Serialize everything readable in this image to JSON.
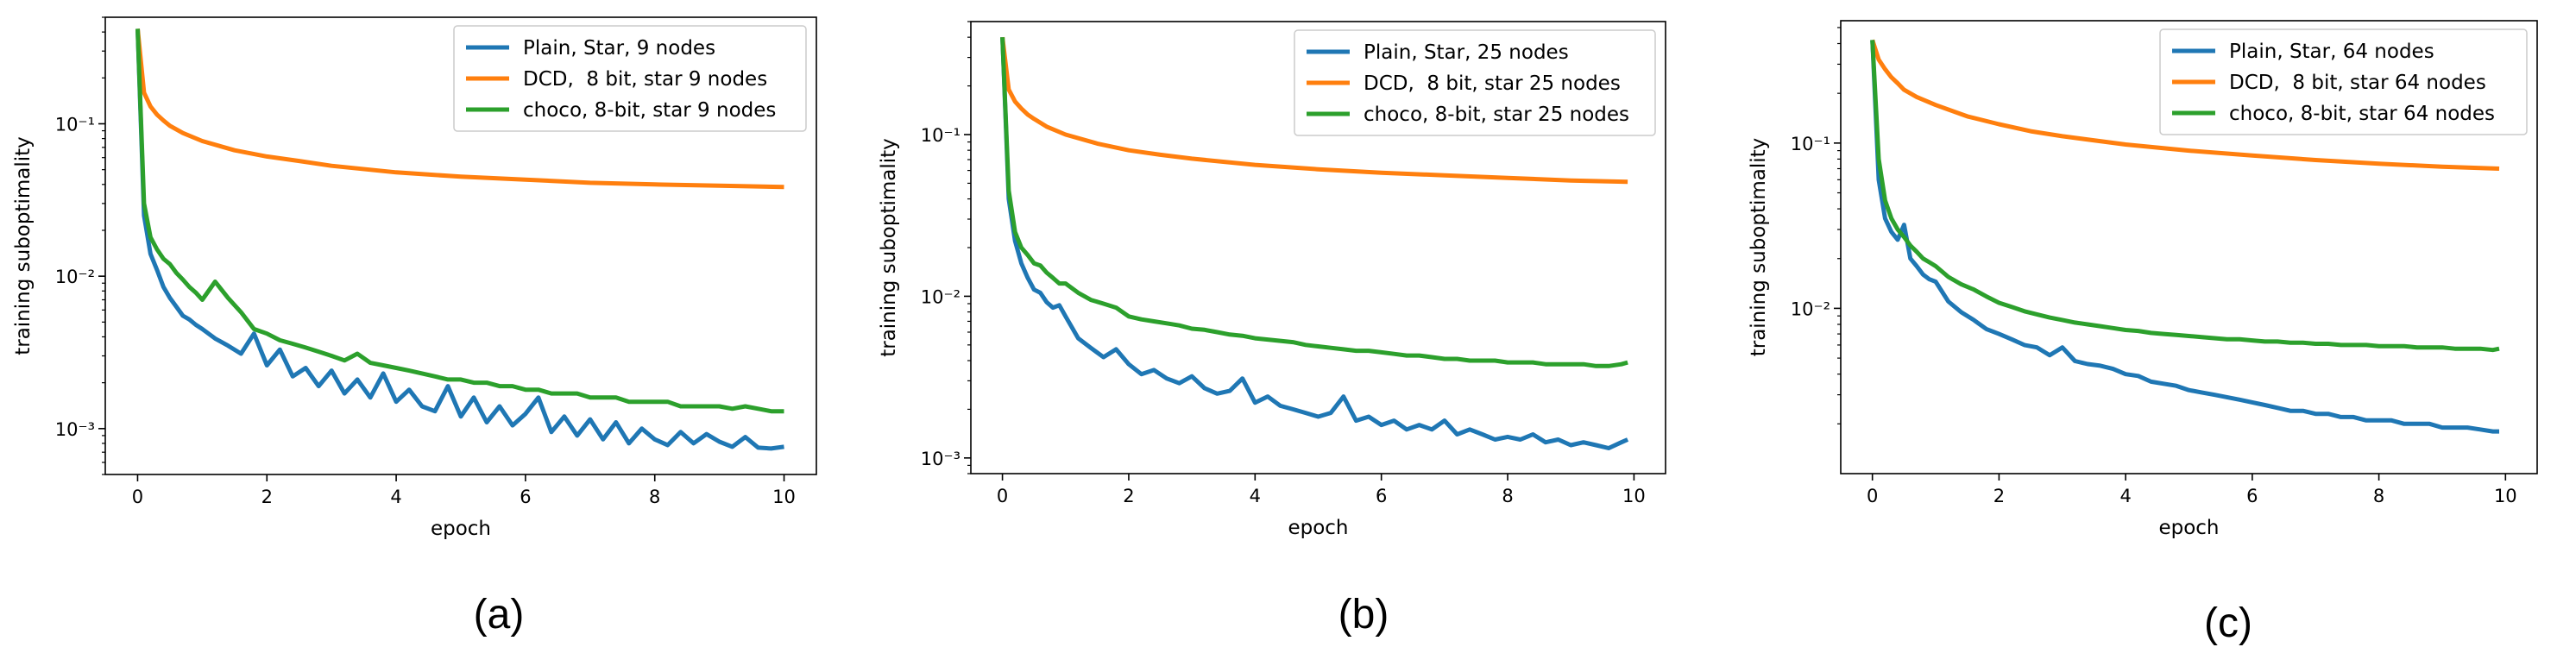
{
  "chart_data": [
    {
      "type": "line",
      "caption": "(a)",
      "xlabel": "epoch",
      "ylabel": "training suboptimality",
      "yscale": "log",
      "xlim": [
        -0.5,
        10.5
      ],
      "ylim": [
        0.0005,
        0.5
      ],
      "xticks": [
        0,
        2,
        4,
        6,
        8,
        10
      ],
      "yticks": [
        0.001,
        0.01,
        0.1
      ],
      "ytick_labels": [
        "10⁻³",
        "10⁻²",
        "10⁻¹"
      ],
      "legend_position": "top-right",
      "series": [
        {
          "name": "Plain, Star, 9 nodes",
          "color": "#1f77b4",
          "x": [
            0,
            0.1,
            0.2,
            0.3,
            0.4,
            0.5,
            0.6,
            0.7,
            0.8,
            0.9,
            1.0,
            1.2,
            1.4,
            1.6,
            1.8,
            2.0,
            2.2,
            2.4,
            2.6,
            2.8,
            3.0,
            3.2,
            3.4,
            3.6,
            3.8,
            4.0,
            4.2,
            4.4,
            4.6,
            4.8,
            5.0,
            5.2,
            5.4,
            5.6,
            5.8,
            6.0,
            6.2,
            6.4,
            6.6,
            6.8,
            7.0,
            7.2,
            7.4,
            7.6,
            7.8,
            8.0,
            8.2,
            8.4,
            8.6,
            8.8,
            9.0,
            9.2,
            9.4,
            9.6,
            9.8,
            10.0
          ],
          "y": [
            0.42,
            0.025,
            0.014,
            0.011,
            0.0085,
            0.0072,
            0.0063,
            0.0055,
            0.0052,
            0.0048,
            0.0045,
            0.0039,
            0.0035,
            0.0031,
            0.0042,
            0.0026,
            0.0033,
            0.0022,
            0.0025,
            0.0019,
            0.0024,
            0.0017,
            0.0021,
            0.0016,
            0.0023,
            0.0015,
            0.0018,
            0.0014,
            0.0013,
            0.0019,
            0.0012,
            0.0016,
            0.0011,
            0.0014,
            0.00105,
            0.00125,
            0.0016,
            0.00095,
            0.0012,
            0.0009,
            0.00115,
            0.00085,
            0.0011,
            0.0008,
            0.001,
            0.00085,
            0.00078,
            0.00095,
            0.0008,
            0.00092,
            0.00082,
            0.00076,
            0.00088,
            0.00075,
            0.00074,
            0.00076
          ]
        },
        {
          "name": "DCD,  8 bit, star 9 nodes",
          "color": "#ff7f0e",
          "x": [
            0,
            0.1,
            0.2,
            0.3,
            0.4,
            0.5,
            0.7,
            1.0,
            1.5,
            2.0,
            2.5,
            3.0,
            4.0,
            5.0,
            6.0,
            7.0,
            8.0,
            9.0,
            10.0
          ],
          "y": [
            0.42,
            0.16,
            0.13,
            0.115,
            0.105,
            0.097,
            0.087,
            0.077,
            0.067,
            0.061,
            0.057,
            0.053,
            0.048,
            0.045,
            0.043,
            0.041,
            0.04,
            0.0392,
            0.0385
          ]
        },
        {
          "name": "choco, 8-bit, star 9 nodes",
          "color": "#2ca02c",
          "x": [
            0,
            0.1,
            0.2,
            0.3,
            0.4,
            0.5,
            0.6,
            0.7,
            0.8,
            0.9,
            1.0,
            1.2,
            1.4,
            1.6,
            1.8,
            2.0,
            2.2,
            2.4,
            2.6,
            2.8,
            3.0,
            3.2,
            3.4,
            3.6,
            3.8,
            4.0,
            4.2,
            4.4,
            4.6,
            4.8,
            5.0,
            5.2,
            5.4,
            5.6,
            5.8,
            6.0,
            6.2,
            6.4,
            6.6,
            6.8,
            7.0,
            7.2,
            7.4,
            7.6,
            7.8,
            8.0,
            8.2,
            8.4,
            8.6,
            8.8,
            9.0,
            9.2,
            9.4,
            9.6,
            9.8,
            10.0
          ],
          "y": [
            0.42,
            0.03,
            0.018,
            0.015,
            0.013,
            0.012,
            0.0105,
            0.0095,
            0.0085,
            0.0078,
            0.007,
            0.0092,
            0.0072,
            0.0058,
            0.0045,
            0.0042,
            0.0038,
            0.0036,
            0.0034,
            0.0032,
            0.003,
            0.0028,
            0.0031,
            0.0027,
            0.0026,
            0.0025,
            0.0024,
            0.0023,
            0.0022,
            0.0021,
            0.0021,
            0.002,
            0.002,
            0.0019,
            0.0019,
            0.0018,
            0.0018,
            0.0017,
            0.0017,
            0.0017,
            0.0016,
            0.0016,
            0.0016,
            0.0015,
            0.0015,
            0.0015,
            0.0015,
            0.0014,
            0.0014,
            0.0014,
            0.0014,
            0.00135,
            0.0014,
            0.00135,
            0.0013,
            0.0013
          ]
        }
      ]
    },
    {
      "type": "line",
      "caption": "(b)",
      "xlabel": "epoch",
      "ylabel": "training suboptimality",
      "yscale": "log",
      "xlim": [
        -0.5,
        10.5
      ],
      "ylim": [
        0.0008,
        0.5
      ],
      "xticks": [
        0,
        2,
        4,
        6,
        8,
        10
      ],
      "yticks": [
        0.001,
        0.01,
        0.1
      ],
      "ytick_labels": [
        "10⁻³",
        "10⁻²",
        "10⁻¹"
      ],
      "legend_position": "top-right",
      "series": [
        {
          "name": "Plain, Star, 25 nodes",
          "color": "#1f77b4",
          "x": [
            0,
            0.1,
            0.2,
            0.3,
            0.4,
            0.5,
            0.6,
            0.7,
            0.8,
            0.9,
            1.0,
            1.2,
            1.4,
            1.6,
            1.8,
            2.0,
            2.2,
            2.4,
            2.6,
            2.8,
            3.0,
            3.2,
            3.4,
            3.6,
            3.8,
            4.0,
            4.2,
            4.4,
            4.6,
            4.8,
            5.0,
            5.2,
            5.4,
            5.6,
            5.8,
            6.0,
            6.2,
            6.4,
            6.6,
            6.8,
            7.0,
            7.2,
            7.4,
            7.6,
            7.8,
            8.0,
            8.2,
            8.4,
            8.6,
            8.8,
            9.0,
            9.2,
            9.4,
            9.6,
            9.8,
            9.9
          ],
          "y": [
            0.4,
            0.04,
            0.022,
            0.016,
            0.013,
            0.011,
            0.0105,
            0.0092,
            0.0085,
            0.0088,
            0.0075,
            0.0055,
            0.0048,
            0.0042,
            0.0047,
            0.0038,
            0.0033,
            0.0035,
            0.0031,
            0.0029,
            0.0032,
            0.0027,
            0.0025,
            0.0026,
            0.0031,
            0.0022,
            0.0024,
            0.0021,
            0.002,
            0.0019,
            0.0018,
            0.0019,
            0.0024,
            0.0017,
            0.0018,
            0.0016,
            0.0017,
            0.0015,
            0.0016,
            0.0015,
            0.0017,
            0.0014,
            0.0015,
            0.0014,
            0.0013,
            0.00135,
            0.0013,
            0.0014,
            0.00125,
            0.0013,
            0.0012,
            0.00125,
            0.0012,
            0.00115,
            0.00125,
            0.0013
          ]
        },
        {
          "name": "DCD,  8 bit, star 25 nodes",
          "color": "#ff7f0e",
          "x": [
            0,
            0.1,
            0.2,
            0.3,
            0.4,
            0.5,
            0.7,
            1.0,
            1.5,
            2.0,
            2.5,
            3.0,
            4.0,
            5.0,
            6.0,
            7.0,
            8.0,
            9.0,
            9.9
          ],
          "y": [
            0.4,
            0.19,
            0.16,
            0.145,
            0.133,
            0.125,
            0.112,
            0.1,
            0.088,
            0.08,
            0.075,
            0.071,
            0.065,
            0.061,
            0.058,
            0.056,
            0.054,
            0.052,
            0.051
          ]
        },
        {
          "name": "choco, 8-bit, star 25 nodes",
          "color": "#2ca02c",
          "x": [
            0,
            0.1,
            0.2,
            0.3,
            0.4,
            0.5,
            0.6,
            0.7,
            0.8,
            0.9,
            1.0,
            1.2,
            1.4,
            1.6,
            1.8,
            2.0,
            2.2,
            2.4,
            2.6,
            2.8,
            3.0,
            3.2,
            3.4,
            3.6,
            3.8,
            4.0,
            4.2,
            4.4,
            4.6,
            4.8,
            5.0,
            5.2,
            5.4,
            5.6,
            5.8,
            6.0,
            6.2,
            6.4,
            6.6,
            6.8,
            7.0,
            7.2,
            7.4,
            7.6,
            7.8,
            8.0,
            8.2,
            8.4,
            8.6,
            8.8,
            9.0,
            9.2,
            9.4,
            9.6,
            9.8,
            9.9
          ],
          "y": [
            0.4,
            0.045,
            0.025,
            0.02,
            0.018,
            0.016,
            0.0155,
            0.014,
            0.013,
            0.012,
            0.012,
            0.0105,
            0.0095,
            0.009,
            0.0085,
            0.0075,
            0.0072,
            0.007,
            0.0068,
            0.0066,
            0.0063,
            0.0062,
            0.006,
            0.0058,
            0.0057,
            0.0055,
            0.0054,
            0.0053,
            0.0052,
            0.005,
            0.0049,
            0.0048,
            0.0047,
            0.0046,
            0.0046,
            0.0045,
            0.0044,
            0.0043,
            0.0043,
            0.0042,
            0.0041,
            0.0041,
            0.004,
            0.004,
            0.004,
            0.0039,
            0.0039,
            0.0039,
            0.0038,
            0.0038,
            0.0038,
            0.0038,
            0.0037,
            0.0037,
            0.0038,
            0.0039
          ]
        }
      ]
    },
    {
      "type": "line",
      "caption": "(c)",
      "xlabel": "epoch",
      "ylabel": "training suboptimality",
      "yscale": "log",
      "xlim": [
        -0.5,
        10.5
      ],
      "ylim": [
        0.001,
        0.55
      ],
      "xticks": [
        0,
        2,
        4,
        6,
        8,
        10
      ],
      "yticks": [
        0.01,
        0.1
      ],
      "ytick_labels": [
        "10⁻²",
        "10⁻¹"
      ],
      "legend_position": "top-right",
      "series": [
        {
          "name": "Plain, Star, 64 nodes",
          "color": "#1f77b4",
          "x": [
            0,
            0.1,
            0.2,
            0.3,
            0.4,
            0.5,
            0.6,
            0.7,
            0.8,
            0.9,
            1.0,
            1.2,
            1.4,
            1.6,
            1.8,
            2.0,
            2.2,
            2.4,
            2.6,
            2.8,
            3.0,
            3.2,
            3.4,
            3.6,
            3.8,
            4.0,
            4.2,
            4.4,
            4.6,
            4.8,
            5.0,
            5.2,
            5.4,
            5.6,
            5.8,
            6.0,
            6.2,
            6.4,
            6.6,
            6.8,
            7.0,
            7.2,
            7.4,
            7.6,
            7.8,
            8.0,
            8.2,
            8.4,
            8.6,
            8.8,
            9.0,
            9.2,
            9.4,
            9.6,
            9.8,
            9.9
          ],
          "y": [
            0.42,
            0.06,
            0.035,
            0.029,
            0.026,
            0.032,
            0.02,
            0.018,
            0.016,
            0.015,
            0.0145,
            0.011,
            0.0095,
            0.0085,
            0.0075,
            0.007,
            0.0065,
            0.006,
            0.0058,
            0.0052,
            0.0058,
            0.0048,
            0.0046,
            0.0045,
            0.0043,
            0.004,
            0.0039,
            0.0036,
            0.0035,
            0.0034,
            0.0032,
            0.0031,
            0.003,
            0.0029,
            0.0028,
            0.0027,
            0.0026,
            0.0025,
            0.0024,
            0.0024,
            0.0023,
            0.0023,
            0.0022,
            0.0022,
            0.0021,
            0.0021,
            0.0021,
            0.002,
            0.002,
            0.002,
            0.0019,
            0.0019,
            0.0019,
            0.00185,
            0.0018,
            0.0018
          ]
        },
        {
          "name": "DCD,  8 bit, star 64 nodes",
          "color": "#ff7f0e",
          "x": [
            0,
            0.1,
            0.2,
            0.3,
            0.4,
            0.5,
            0.7,
            1.0,
            1.5,
            2.0,
            2.5,
            3.0,
            4.0,
            5.0,
            6.0,
            7.0,
            8.0,
            9.0,
            9.9
          ],
          "y": [
            0.42,
            0.32,
            0.28,
            0.25,
            0.23,
            0.21,
            0.19,
            0.17,
            0.145,
            0.13,
            0.118,
            0.11,
            0.098,
            0.09,
            0.084,
            0.079,
            0.075,
            0.072,
            0.07
          ]
        },
        {
          "name": "choco, 8-bit, star 64 nodes",
          "color": "#2ca02c",
          "x": [
            0,
            0.1,
            0.2,
            0.3,
            0.4,
            0.5,
            0.6,
            0.7,
            0.8,
            0.9,
            1.0,
            1.2,
            1.4,
            1.6,
            1.8,
            2.0,
            2.2,
            2.4,
            2.6,
            2.8,
            3.0,
            3.2,
            3.4,
            3.6,
            3.8,
            4.0,
            4.2,
            4.4,
            4.6,
            4.8,
            5.0,
            5.2,
            5.4,
            5.6,
            5.8,
            6.0,
            6.2,
            6.4,
            6.6,
            6.8,
            7.0,
            7.2,
            7.4,
            7.6,
            7.8,
            8.0,
            8.2,
            8.4,
            8.6,
            8.8,
            9.0,
            9.2,
            9.4,
            9.6,
            9.8,
            9.9
          ],
          "y": [
            0.42,
            0.08,
            0.045,
            0.035,
            0.03,
            0.027,
            0.024,
            0.022,
            0.02,
            0.019,
            0.018,
            0.0155,
            0.014,
            0.013,
            0.0118,
            0.0108,
            0.0102,
            0.0096,
            0.0092,
            0.0088,
            0.0085,
            0.0082,
            0.008,
            0.0078,
            0.0076,
            0.0074,
            0.0073,
            0.0071,
            0.007,
            0.0069,
            0.0068,
            0.0067,
            0.0066,
            0.0065,
            0.0065,
            0.0064,
            0.0063,
            0.0063,
            0.0062,
            0.0062,
            0.0061,
            0.0061,
            0.006,
            0.006,
            0.006,
            0.0059,
            0.0059,
            0.0059,
            0.0058,
            0.0058,
            0.0058,
            0.0057,
            0.0057,
            0.0057,
            0.0056,
            0.0057
          ]
        }
      ]
    }
  ]
}
